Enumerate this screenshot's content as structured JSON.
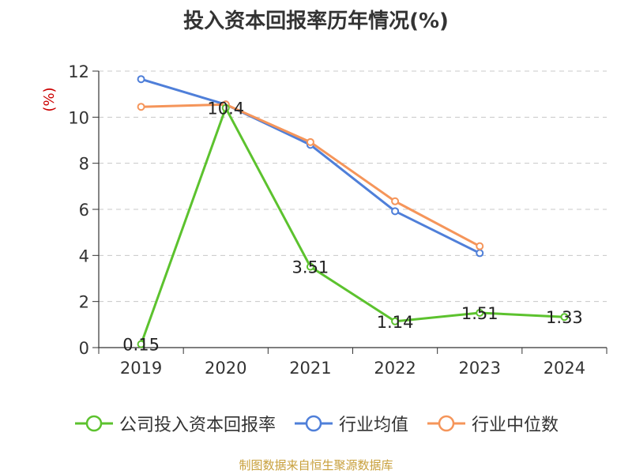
{
  "chart_data": {
    "type": "line",
    "title": "投入资本回报率历年情况(%)",
    "ylabel": "(%)",
    "xlabel": "",
    "categories": [
      "2019",
      "2020",
      "2021",
      "2022",
      "2023",
      "2024"
    ],
    "ylim": [
      0,
      12
    ],
    "yticks": [
      0,
      2,
      4,
      6,
      8,
      10,
      12
    ],
    "grid": true,
    "legend_position": "bottom",
    "series": [
      {
        "name": "公司投入资本回报率",
        "color": "#5cc22e",
        "values": [
          0.15,
          10.4,
          3.51,
          1.14,
          1.51,
          1.33
        ],
        "labels": [
          "0.15",
          "10.4",
          "3.51",
          "1.14",
          "1.51",
          "1.33"
        ]
      },
      {
        "name": "行业均值",
        "color": "#4f7fd9",
        "values": [
          11.65,
          10.55,
          8.8,
          5.92,
          4.1,
          null
        ]
      },
      {
        "name": "行业中位数",
        "color": "#f5955a",
        "values": [
          10.45,
          10.55,
          8.92,
          6.35,
          4.4,
          null
        ]
      }
    ]
  },
  "source": "制图数据来自恒生聚源数据库"
}
